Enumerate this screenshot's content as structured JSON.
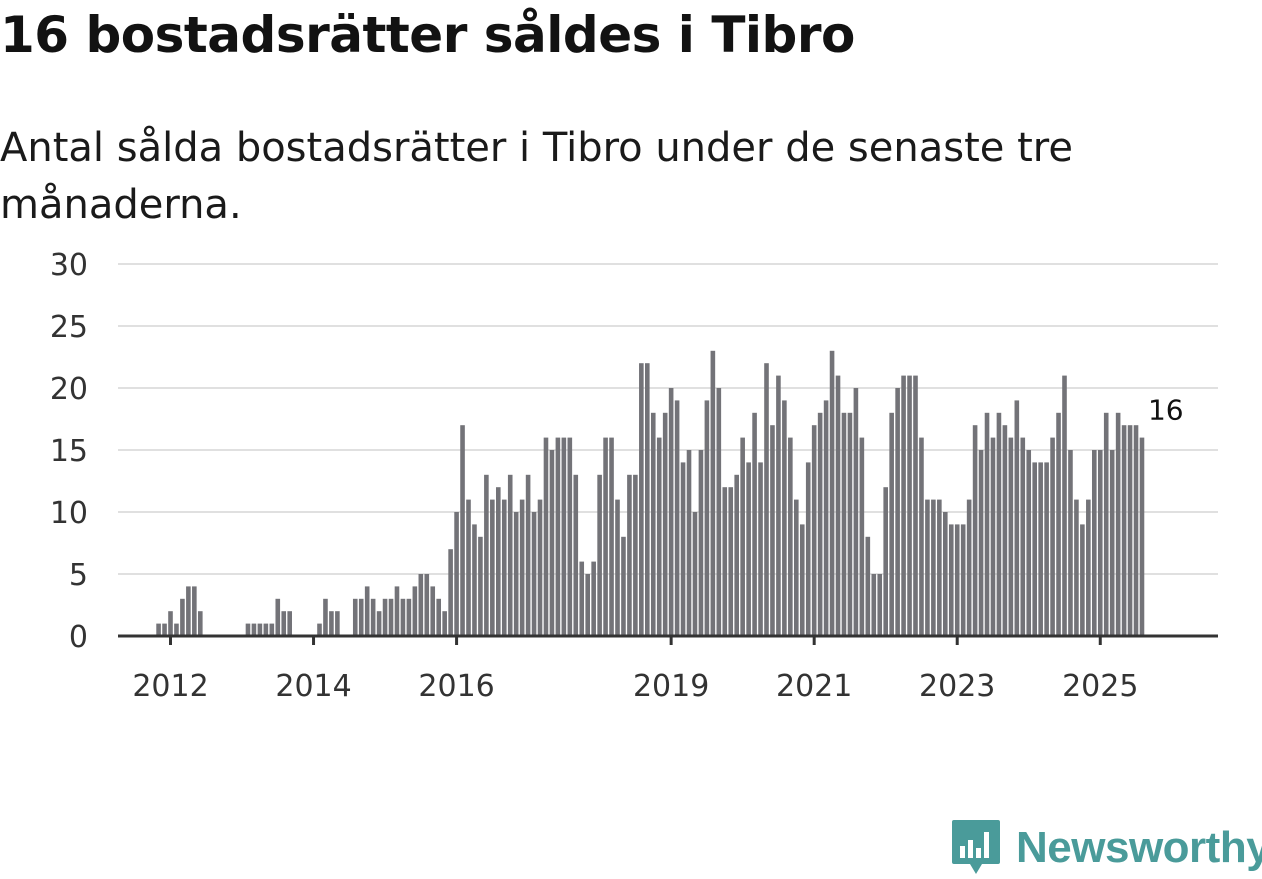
{
  "header": {
    "title": "16 bostadsrätter såldes i Tibro",
    "subtitle": "Antal sålda bostadsrätter i Tibro under de senaste tre månaderna."
  },
  "brand": {
    "name": "Newsworthy",
    "color": "#4a9b9a"
  },
  "chart_data": {
    "type": "bar",
    "title": "16 bostadsrätter såldes i Tibro",
    "subtitle": "Antal sålda bostadsrätter i Tibro under de senaste tre månaderna.",
    "xlabel": "",
    "ylabel": "",
    "ylim": [
      0,
      30
    ],
    "yticks": [
      0,
      5,
      10,
      15,
      20,
      25,
      30
    ],
    "grid": true,
    "start": "2011-01",
    "x_tick_labels": [
      {
        "label": "2012",
        "index": 12
      },
      {
        "label": "2014",
        "index": 36
      },
      {
        "label": "2016",
        "index": 60
      },
      {
        "label": "2019",
        "index": 96
      },
      {
        "label": "2021",
        "index": 120
      },
      {
        "label": "2023",
        "index": 144
      },
      {
        "label": "2025",
        "index": 168
      }
    ],
    "values": [
      0,
      0,
      0,
      0,
      0,
      0,
      0,
      0,
      0,
      0,
      1,
      1,
      2,
      1,
      3,
      4,
      4,
      2,
      0,
      0,
      0,
      0,
      0,
      0,
      0,
      1,
      1,
      1,
      1,
      1,
      3,
      2,
      2,
      0,
      0,
      0,
      0,
      1,
      3,
      2,
      2,
      0,
      0,
      3,
      3,
      4,
      3,
      2,
      3,
      3,
      4,
      3,
      3,
      4,
      5,
      5,
      4,
      3,
      2,
      7,
      10,
      17,
      11,
      9,
      8,
      13,
      11,
      12,
      11,
      13,
      10,
      11,
      13,
      10,
      11,
      16,
      15,
      16,
      16,
      16,
      13,
      6,
      5,
      6,
      13,
      16,
      16,
      11,
      8,
      13,
      13,
      22,
      22,
      18,
      16,
      18,
      20,
      19,
      14,
      15,
      10,
      15,
      19,
      23,
      20,
      12,
      12,
      13,
      16,
      14,
      18,
      14,
      22,
      17,
      21,
      19,
      16,
      11,
      9,
      14,
      17,
      18,
      19,
      23,
      21,
      18,
      18,
      20,
      16,
      8,
      5,
      5,
      12,
      18,
      20,
      21,
      21,
      21,
      16,
      11,
      11,
      11,
      10,
      9,
      9,
      9,
      11,
      17,
      15,
      18,
      16,
      18,
      17,
      16,
      19,
      16,
      15,
      14,
      14,
      14,
      16,
      18,
      21,
      15,
      11,
      9,
      11,
      15,
      15,
      18,
      15,
      18,
      17,
      17,
      17,
      16
    ],
    "highlight": {
      "index": 179,
      "value": 16,
      "label": "16"
    },
    "colors": {
      "bar": "#737378",
      "highlight": "#2a9d8f",
      "grid": "#e0e0e0",
      "axis": "#333333"
    }
  }
}
